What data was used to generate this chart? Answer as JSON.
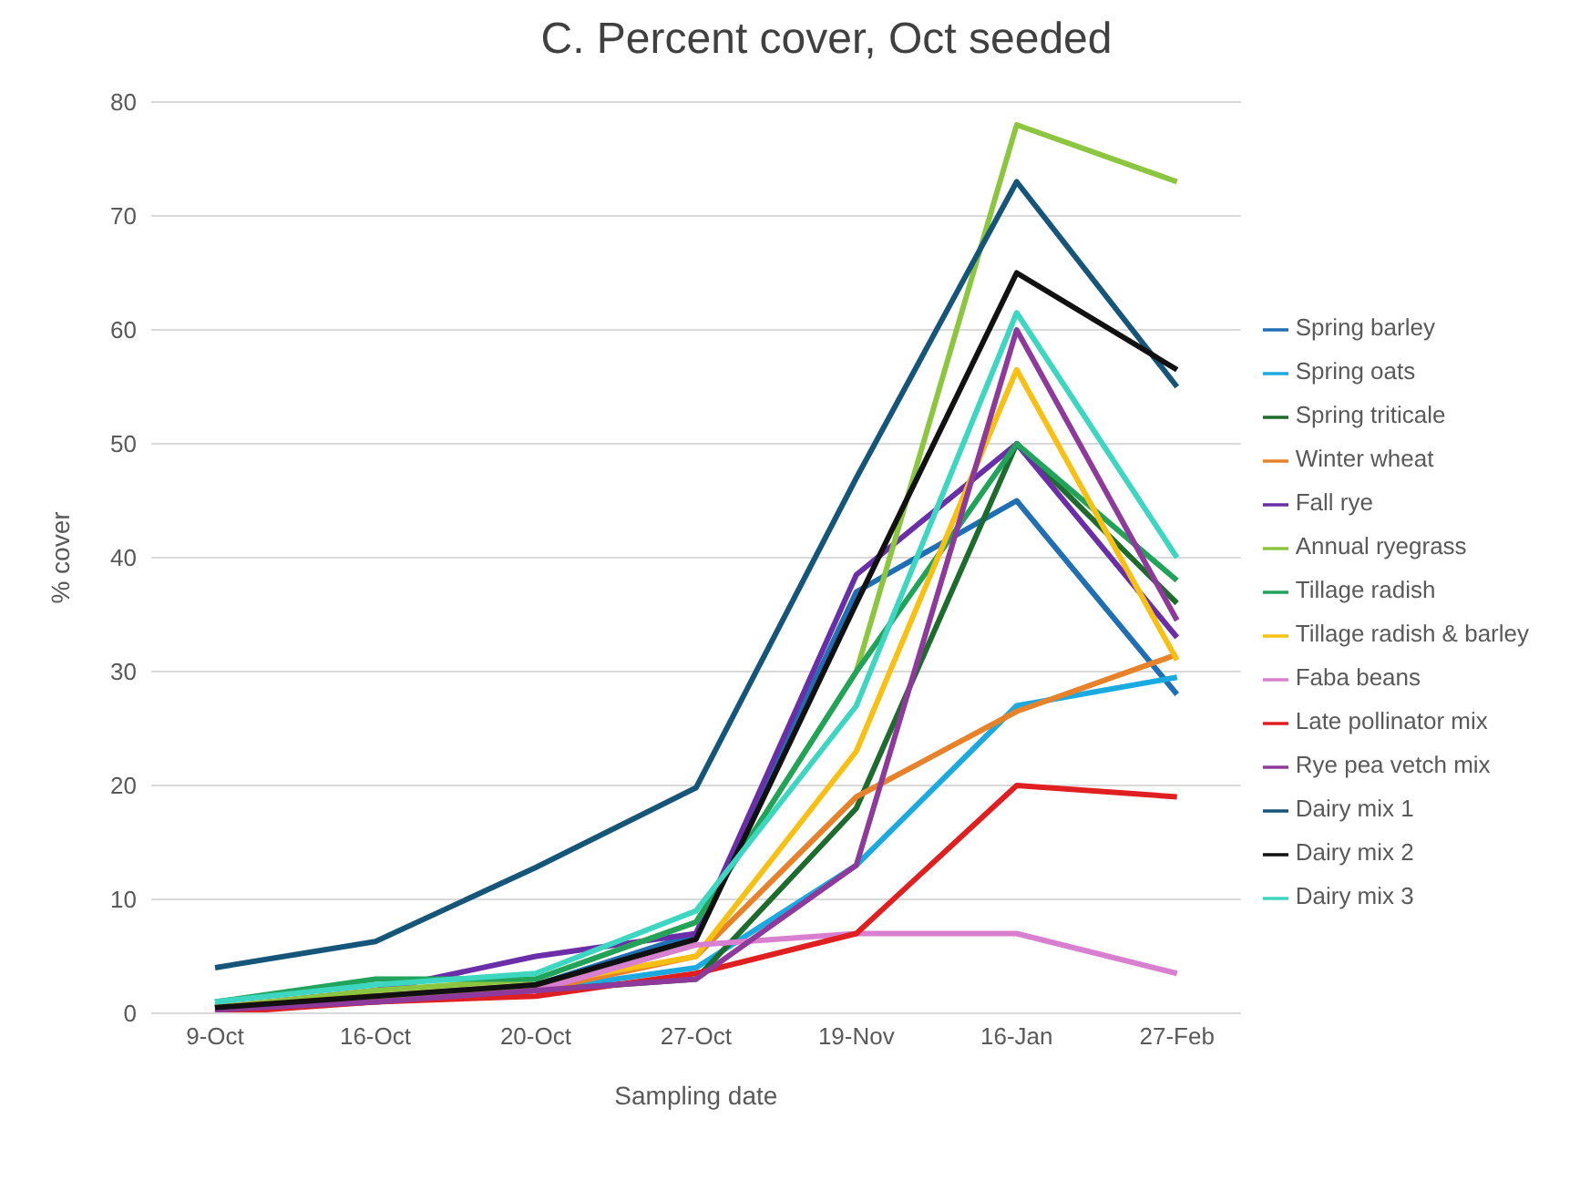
{
  "chart_data": {
    "type": "line",
    "title": "C. Percent cover, Oct seeded",
    "xlabel": "Sampling date",
    "ylabel": "% cover",
    "categories": [
      "9-Oct",
      "16-Oct",
      "20-Oct",
      "27-Oct",
      "19-Nov",
      "16-Jan",
      "27-Feb"
    ],
    "series": [
      {
        "name": "Spring barley",
        "color": "#1f6fb4",
        "values": [
          0.5,
          1.5,
          2.5,
          7,
          37,
          45,
          28
        ]
      },
      {
        "name": "Spring oats",
        "color": "#1aaae0",
        "values": [
          0.5,
          1,
          2,
          4,
          13,
          27,
          29.5
        ]
      },
      {
        "name": "Spring triticale",
        "color": "#1e6b2e",
        "values": [
          0.5,
          1.5,
          2,
          3,
          18,
          50,
          36
        ]
      },
      {
        "name": "Winter wheat",
        "color": "#e8822a",
        "values": [
          0.3,
          1,
          2,
          5,
          19,
          26.5,
          31.5
        ]
      },
      {
        "name": "Fall rye",
        "color": "#6a2fa8",
        "values": [
          0.5,
          2,
          5,
          7,
          38.5,
          50,
          33
        ]
      },
      {
        "name": "Annual ryegrass",
        "color": "#8cc63f",
        "values": [
          0.5,
          2,
          3,
          8,
          30,
          78,
          73
        ]
      },
      {
        "name": "Tillage radish",
        "color": "#22a35a",
        "values": [
          1,
          3,
          3,
          8,
          30,
          50,
          38
        ]
      },
      {
        "name": "Tillage radish & barley",
        "color": "#f7c012",
        "values": [
          0.5,
          1.5,
          2.5,
          5,
          23,
          56.5,
          31
        ]
      },
      {
        "name": "Faba beans",
        "color": "#d97fd0",
        "values": [
          0.2,
          1,
          2,
          6,
          7,
          7,
          3.5
        ]
      },
      {
        "name": "Late pollinator mix",
        "color": "#e02020",
        "values": [
          0,
          1,
          1.5,
          3.5,
          7,
          20,
          19
        ]
      },
      {
        "name": "Rye pea vetch mix",
        "color": "#8e3a9a",
        "values": [
          0.3,
          1,
          2,
          3,
          13,
          60,
          34.5
        ]
      },
      {
        "name": "Dairy mix 1",
        "color": "#15557a",
        "values": [
          4,
          6.3,
          12.8,
          19.8,
          47,
          73,
          55
        ]
      },
      {
        "name": "Dairy mix 2",
        "color": "#111111",
        "values": [
          0.5,
          1.5,
          2.5,
          6.5,
          36,
          65,
          56.5
        ]
      },
      {
        "name": "Dairy mix 3",
        "color": "#3dd6c0",
        "values": [
          1,
          2.5,
          3.5,
          9,
          27,
          61.5,
          40
        ]
      }
    ],
    "ylim": [
      0,
      80
    ],
    "yticks": [
      0,
      10,
      20,
      30,
      40,
      50,
      60,
      70,
      80
    ],
    "grid": "y",
    "legend": "right",
    "marker": "none",
    "line_style": "solid"
  }
}
